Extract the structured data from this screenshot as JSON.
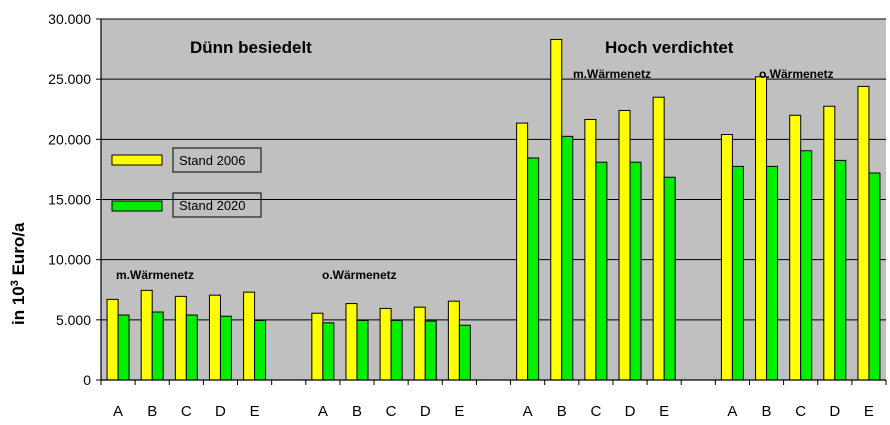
{
  "chart_data": {
    "type": "bar",
    "ylabel_main": "in 10",
    "ylabel_sup": "3",
    "ylabel_tail": " Euro/a",
    "ylim": [
      0,
      30000
    ],
    "yticks": [
      0,
      5000,
      10000,
      15000,
      20000,
      25000,
      30000
    ],
    "ytick_labels": [
      "0",
      "5.000",
      "10.000",
      "15.000",
      "20.000",
      "25.000",
      "30.000"
    ],
    "grid": true,
    "legend_position": "left",
    "colors": {
      "background": "#c0c0c0",
      "series_2006": "#ffff00",
      "series_2020": "#00ee00",
      "grid": "#000000"
    },
    "region_labels": [
      "Dünn besiedelt",
      "Hoch verdichtet"
    ],
    "groups": [
      {
        "label": "m.Wärmenetz",
        "categories": [
          "A",
          "B",
          "C",
          "D",
          "E"
        ],
        "stand_2006": [
          6700,
          7450,
          6950,
          7050,
          7300
        ],
        "stand_2020": [
          5400,
          5650,
          5400,
          5300,
          4950
        ]
      },
      {
        "label": "o.Wärmenetz",
        "categories": [
          "A",
          "B",
          "C",
          "D",
          "E"
        ],
        "stand_2006": [
          5550,
          6350,
          5950,
          6050,
          6550
        ],
        "stand_2020": [
          4750,
          4950,
          4950,
          4900,
          4550
        ]
      },
      {
        "label": "m.Wärmenetz",
        "categories": [
          "A",
          "B",
          "C",
          "D",
          "E"
        ],
        "stand_2006": [
          21350,
          28300,
          21650,
          22400,
          23500
        ],
        "stand_2020": [
          18450,
          20250,
          18100,
          18100,
          16850
        ]
      },
      {
        "label": "o.Wärmenetz",
        "categories": [
          "A",
          "B",
          "C",
          "D",
          "E"
        ],
        "stand_2006": [
          20400,
          25200,
          22000,
          22750,
          24400
        ],
        "stand_2020": [
          17750,
          17750,
          19050,
          18250,
          17200
        ]
      }
    ],
    "series": [
      {
        "name": "Stand 2006"
      },
      {
        "name": "Stand 2020"
      }
    ]
  }
}
